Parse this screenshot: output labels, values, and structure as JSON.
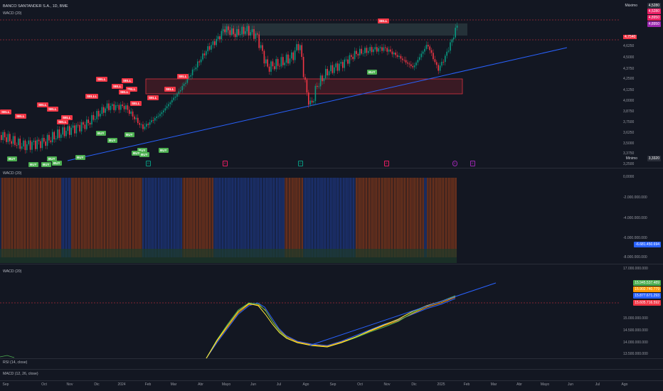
{
  "header": {
    "symbol": "BANCO SANTANDER S.A., 1D, BME",
    "indicator": "WACD (20)"
  },
  "price_scale": {
    "ticks": [
      "4,6250",
      "4,5000",
      "4,3750",
      "4,2500",
      "4,1250",
      "4,0000",
      "3,8750",
      "3,7500",
      "3,6250",
      "3,5000",
      "3,3750",
      "3,2500"
    ],
    "max_label": "Máximo",
    "max_value": "4,5280",
    "min_label": "Mínimo",
    "min_value": "3,3320",
    "tags": [
      "4,5280",
      "4,8950",
      "4,8950",
      "4,7540"
    ]
  },
  "pane2": {
    "title": "WACD (20)",
    "ticks": [
      "0,0000",
      "-2.000.000.000",
      "-4.000.000.000",
      "-6.000.000.000",
      "-8.000.000.000"
    ],
    "tag": "-6.681.450.694"
  },
  "pane3": {
    "title": "WACD (20)",
    "ticks": [
      "17.000.000.000",
      "15.000.000.000",
      "14.500.000.000",
      "14.000.000.000",
      "13.500.000.000"
    ],
    "tags": [
      "15.945.537.489",
      "15.902.740.779",
      "15.877.671.293",
      "15.605.716.592"
    ]
  },
  "collapsed": {
    "rsi": "RSI (14, close)",
    "macd": "MACD (12, 26, close)"
  },
  "xaxis": [
    "Sep",
    "Oct",
    "Nov",
    "Dic",
    "2024",
    "Feb",
    "Mar",
    "Abr",
    "Mayo",
    "Jun",
    "Jul",
    "Ago",
    "Sep",
    "Oct",
    "Nov",
    "Dic",
    "2025",
    "Feb",
    "Mar",
    "Abr",
    "Mayo",
    "Jun",
    "Jul",
    "Ago"
  ],
  "signals": {
    "sell": "SELL",
    "buy": "BUY",
    "sellll": "SELLL"
  },
  "colors": {
    "bg": "#131722",
    "up": "#089981",
    "down": "#f23645",
    "trend": "#2962ff",
    "accent": "#e91e63"
  }
}
